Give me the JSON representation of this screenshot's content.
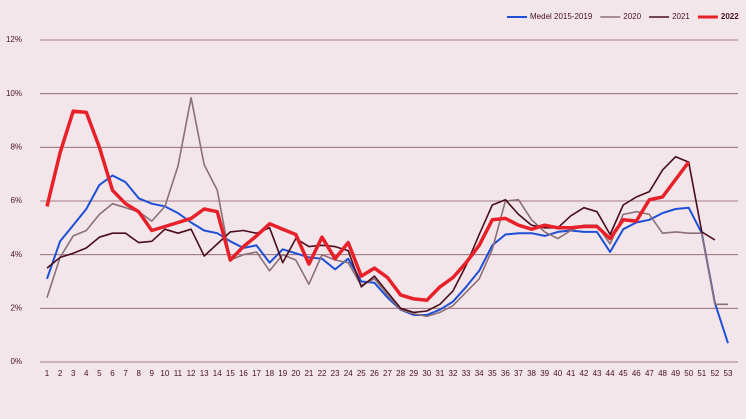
{
  "chart_data": {
    "type": "line",
    "categories": [
      "1",
      "2",
      "3",
      "4",
      "5",
      "6",
      "7",
      "8",
      "9",
      "10",
      "11",
      "12",
      "13",
      "14",
      "15",
      "16",
      "17",
      "18",
      "19",
      "20",
      "21",
      "22",
      "23",
      "24",
      "25",
      "26",
      "27",
      "28",
      "29",
      "30",
      "31",
      "32",
      "33",
      "34",
      "35",
      "36",
      "37",
      "38",
      "39",
      "40",
      "41",
      "42",
      "43",
      "44",
      "45",
      "46",
      "47",
      "48",
      "49",
      "50",
      "51",
      "52",
      "53"
    ],
    "ylim": [
      0,
      12
    ],
    "yticks": [
      {
        "value": 0,
        "label": "0%"
      },
      {
        "value": 2,
        "label": "2%"
      },
      {
        "value": 4,
        "label": "4%"
      },
      {
        "value": 6,
        "label": "6%"
      },
      {
        "value": 8,
        "label": "8%"
      },
      {
        "value": 10,
        "label": "10%"
      },
      {
        "value": 12,
        "label": "12%"
      }
    ],
    "grid": true,
    "legend": "top-right",
    "series": [
      {
        "name": "Medel 2015-2019",
        "color": "#1f4fd6",
        "line_width": 2,
        "values": [
          3.1,
          4.5,
          5.1,
          5.7,
          6.6,
          6.95,
          6.7,
          6.1,
          5.9,
          5.8,
          5.55,
          5.2,
          4.9,
          4.8,
          4.5,
          4.25,
          4.35,
          3.7,
          4.2,
          4.05,
          3.9,
          3.85,
          3.45,
          3.85,
          3.0,
          2.95,
          2.4,
          1.95,
          1.75,
          1.75,
          1.95,
          2.25,
          2.8,
          3.4,
          4.35,
          4.75,
          4.8,
          4.8,
          4.7,
          4.85,
          4.9,
          4.85,
          4.85,
          4.1,
          4.95,
          5.2,
          5.3,
          5.55,
          5.7,
          5.75,
          4.8,
          2.2,
          0.7
        ]
      },
      {
        "name": "2020",
        "color": "#8c7078",
        "line_width": 1.6,
        "values": [
          2.4,
          3.9,
          4.7,
          4.9,
          5.5,
          5.9,
          5.75,
          5.6,
          5.25,
          5.8,
          7.3,
          9.85,
          7.35,
          6.4,
          3.8,
          4.0,
          4.1,
          3.4,
          4.0,
          3.8,
          2.9,
          4.0,
          3.8,
          3.7,
          2.85,
          3.1,
          2.5,
          1.95,
          1.8,
          1.7,
          1.85,
          2.1,
          2.6,
          3.1,
          4.2,
          6.0,
          6.05,
          5.3,
          4.85,
          4.6,
          4.9,
          5.1,
          5.1,
          4.4,
          5.5,
          5.6,
          5.5,
          4.8,
          4.85,
          4.8,
          4.8,
          2.15,
          2.15
        ]
      },
      {
        "name": "2021",
        "color": "#4a0e1c",
        "line_width": 1.6,
        "values": [
          3.5,
          3.9,
          4.05,
          4.25,
          4.65,
          4.8,
          4.8,
          4.45,
          4.5,
          4.95,
          4.8,
          4.95,
          3.95,
          4.4,
          4.85,
          4.9,
          4.8,
          5.0,
          3.7,
          4.6,
          4.3,
          4.35,
          4.3,
          4.15,
          2.8,
          3.2,
          2.6,
          2.0,
          1.85,
          1.9,
          2.15,
          2.65,
          3.6,
          4.75,
          5.85,
          6.05,
          5.5,
          5.1,
          5.0,
          5.0,
          5.45,
          5.75,
          5.6,
          4.75,
          5.85,
          6.15,
          6.35,
          7.15,
          7.65,
          7.45,
          4.85,
          4.55,
          null
        ]
      },
      {
        "name": "2022",
        "color": "#e8202a",
        "line_width": 3.5,
        "values": [
          5.8,
          7.8,
          9.35,
          9.3,
          8.0,
          6.4,
          5.9,
          5.6,
          4.9,
          5.05,
          5.2,
          5.35,
          5.7,
          5.6,
          3.8,
          4.3,
          4.7,
          5.15,
          4.95,
          4.75,
          3.65,
          4.65,
          3.85,
          4.45,
          3.2,
          3.5,
          3.15,
          2.5,
          2.35,
          2.3,
          2.8,
          3.15,
          3.7,
          4.35,
          5.3,
          5.35,
          5.1,
          4.95,
          5.1,
          5.0,
          5.0,
          5.05,
          5.05,
          4.6,
          5.3,
          5.25,
          6.05,
          6.15,
          6.8,
          7.45,
          null,
          null,
          null
        ]
      }
    ]
  }
}
